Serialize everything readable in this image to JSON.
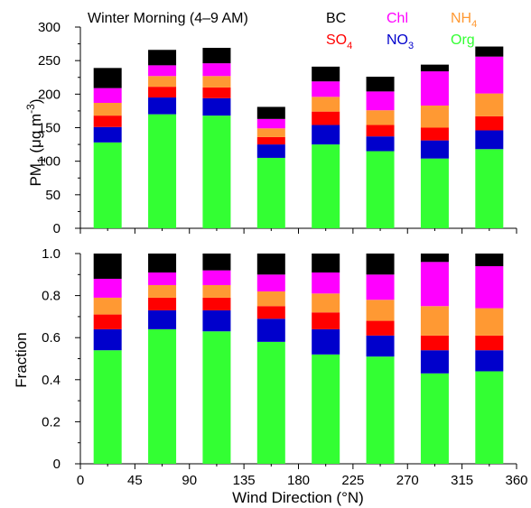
{
  "chart_data": [
    {
      "type": "bar",
      "stacked": true,
      "title": "Winter Morning (4–9 AM)",
      "xlabel": "",
      "ylabel": "PM1 (μg m⁻³)",
      "ylabel_parts": {
        "base": "PM",
        "sub": "1",
        "mid": " (μg m",
        "sup": "-3",
        "end": ")"
      },
      "xlim": [
        0,
        360
      ],
      "ylim": [
        0,
        300
      ],
      "yticks": [
        0,
        50,
        100,
        150,
        200,
        250,
        300
      ],
      "x": [
        22.5,
        67.5,
        112.5,
        157.5,
        202.5,
        247.5,
        292.5,
        337.5
      ],
      "series": [
        {
          "name": "Org",
          "color": "#33ff33",
          "values": [
            128,
            170,
            168,
            105,
            125,
            115,
            104,
            118
          ]
        },
        {
          "name": "NO3",
          "color": "#0000cc",
          "values": [
            23,
            25,
            26,
            20,
            29,
            22,
            27,
            28
          ]
        },
        {
          "name": "SO4",
          "color": "#ff0000",
          "values": [
            17,
            16,
            16,
            11,
            20,
            17,
            19,
            21
          ]
        },
        {
          "name": "NH4",
          "color": "#ff9933",
          "values": [
            19,
            16,
            17,
            13,
            22,
            22,
            33,
            34
          ]
        },
        {
          "name": "Chl",
          "color": "#ff00ff",
          "values": [
            22,
            16,
            19,
            14,
            23,
            28,
            51,
            55
          ]
        },
        {
          "name": "BC",
          "color": "#000000",
          "values": [
            30,
            23,
            23,
            18,
            22,
            22,
            10,
            15
          ]
        }
      ],
      "legend": {
        "placement": "top-right",
        "entries": [
          {
            "base": "BC",
            "sub": "",
            "color": "#000000"
          },
          {
            "base": "Chl",
            "sub": "",
            "color": "#ff00ff"
          },
          {
            "base": "NH",
            "sub": "4",
            "color": "#ff9933"
          },
          {
            "base": "SO",
            "sub": "4",
            "color": "#ff0000"
          },
          {
            "base": "NO",
            "sub": "3",
            "color": "#0000cc"
          },
          {
            "base": "Org",
            "sub": "",
            "color": "#33ff33"
          }
        ]
      }
    },
    {
      "type": "bar",
      "stacked": true,
      "title": "",
      "xlabel": "Wind Direction (°N)",
      "ylabel": "Fraction",
      "xlim": [
        0,
        360
      ],
      "xticks": [
        0,
        45,
        90,
        135,
        180,
        225,
        270,
        315,
        360
      ],
      "ylim": [
        0,
        1.0
      ],
      "yticks": [
        "0",
        "0.2",
        "0.4",
        "0.6",
        "0.8",
        "1.0"
      ],
      "x": [
        22.5,
        67.5,
        112.5,
        157.5,
        202.5,
        247.5,
        292.5,
        337.5
      ],
      "series": [
        {
          "name": "Org",
          "color": "#33ff33",
          "values": [
            0.54,
            0.64,
            0.63,
            0.58,
            0.52,
            0.51,
            0.43,
            0.44
          ]
        },
        {
          "name": "NO3",
          "color": "#0000cc",
          "values": [
            0.1,
            0.09,
            0.1,
            0.11,
            0.12,
            0.1,
            0.11,
            0.1
          ]
        },
        {
          "name": "SO4",
          "color": "#ff0000",
          "values": [
            0.07,
            0.06,
            0.06,
            0.06,
            0.08,
            0.07,
            0.07,
            0.07
          ]
        },
        {
          "name": "NH4",
          "color": "#ff9933",
          "values": [
            0.08,
            0.06,
            0.06,
            0.07,
            0.09,
            0.1,
            0.14,
            0.13
          ]
        },
        {
          "name": "Chl",
          "color": "#ff00ff",
          "values": [
            0.09,
            0.06,
            0.07,
            0.08,
            0.1,
            0.12,
            0.21,
            0.2
          ]
        },
        {
          "name": "BC",
          "color": "#000000",
          "values": [
            0.12,
            0.09,
            0.08,
            0.1,
            0.09,
            0.1,
            0.04,
            0.06
          ]
        }
      ]
    }
  ]
}
